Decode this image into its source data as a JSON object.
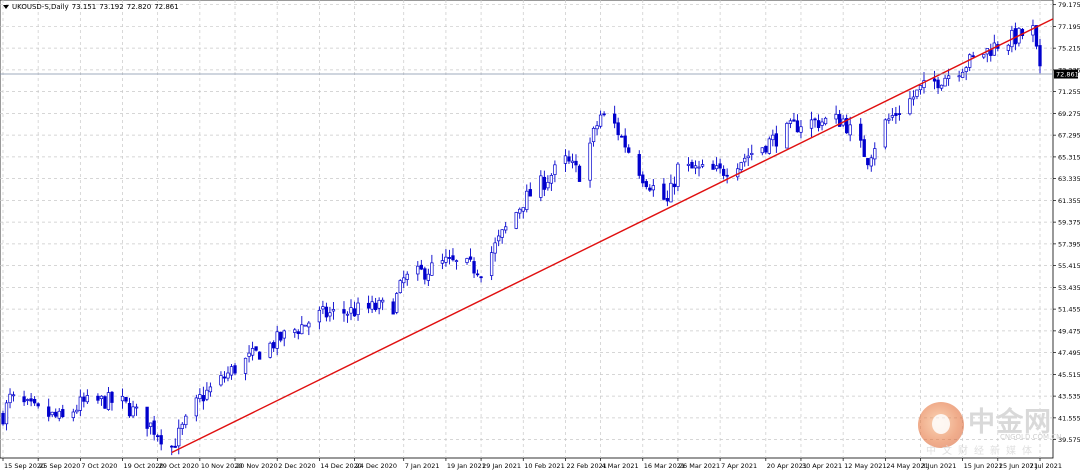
{
  "header": {
    "symbol_timeframe": "UKOUSD-S,Daily",
    "open": "73.151",
    "high": "73.192",
    "low": "72.820",
    "close": "72.861"
  },
  "watermark": {
    "title": "中金网",
    "subtitle": "中文财经新媒体",
    "url": "CNGOLD.COM.CN"
  },
  "colors": {
    "background": "#ffffff",
    "grid": "#c8c8c8",
    "candle": "#0000cc",
    "trendline": "#e01010",
    "price_line": "#7f8fa8",
    "price_tag_bg": "#000000"
  },
  "chart_data": {
    "type": "candlestick",
    "title": "",
    "xlabel": "",
    "ylabel": "",
    "ylim": [
      37.9,
      79.6
    ],
    "grid": true,
    "current_price": "72.861",
    "y_ticks": [
      "79.175",
      "77.195",
      "75.215",
      "73.235",
      "71.255",
      "69.275",
      "67.295",
      "65.315",
      "63.335",
      "61.355",
      "59.375",
      "57.395",
      "55.415",
      "53.435",
      "51.455",
      "49.475",
      "47.495",
      "45.515",
      "43.535",
      "41.555",
      "39.575"
    ],
    "x_ticks": [
      "15 Sep 2020",
      "25 Sep 2020",
      "7 Oct 2020",
      "19 Oct 2020",
      "29 Oct 2020",
      "10 Nov 2020",
      "20 Nov 2020",
      "2 Dec 2020",
      "14 Dec 2020",
      "24 Dec 2020",
      "7 Jan 2021",
      "19 Jan 2021",
      "29 Jan 2021",
      "10 Feb 2021",
      "22 Feb 2021",
      "4 Mar 2021",
      "16 Mar 2021",
      "26 Mar 2021",
      "7 Apr 2021",
      "20 Apr 2021",
      "30 Apr 2021",
      "12 May 2021",
      "24 May 2021",
      "3 Jun 2021",
      "15 Jun 2021",
      "25 Jun 2021",
      "7 Jul 2021"
    ],
    "close_series": [
      {
        "date": "15 Sep 2020",
        "close": 41.8
      },
      {
        "date": "17 Sep 2020",
        "close": 43.3
      },
      {
        "date": "25 Sep 2020",
        "close": 42.1
      },
      {
        "date": "2 Oct 2020",
        "close": 41.4
      },
      {
        "date": "7 Oct 2020",
        "close": 42.8
      },
      {
        "date": "14 Oct 2020",
        "close": 43.1
      },
      {
        "date": "19 Oct 2020",
        "close": 42.9
      },
      {
        "date": "26 Oct 2020",
        "close": 41.2
      },
      {
        "date": "2 Nov 2020",
        "close": 38.9
      },
      {
        "date": "10 Nov 2020",
        "close": 43.3
      },
      {
        "date": "20 Nov 2020",
        "close": 46.1
      },
      {
        "date": "2 Dec 2020",
        "close": 48.6
      },
      {
        "date": "14 Dec 2020",
        "close": 50.9
      },
      {
        "date": "24 Dec 2020",
        "close": 51.3
      },
      {
        "date": "4 Jan 2021",
        "close": 51.8
      },
      {
        "date": "7 Jan 2021",
        "close": 54.1
      },
      {
        "date": "19 Jan 2021",
        "close": 55.7
      },
      {
        "date": "29 Jan 2021",
        "close": 55.1
      },
      {
        "date": "10 Feb 2021",
        "close": 61.3
      },
      {
        "date": "22 Feb 2021",
        "close": 64.9
      },
      {
        "date": "26 Feb 2021",
        "close": 63.8
      },
      {
        "date": "4 Mar 2021",
        "close": 69.1
      },
      {
        "date": "8 Mar 2021",
        "close": 68.2
      },
      {
        "date": "16 Mar 2021",
        "close": 63.6
      },
      {
        "date": "23 Mar 2021",
        "close": 61.1
      },
      {
        "date": "26 Mar 2021",
        "close": 64.3
      },
      {
        "date": "7 Apr 2021",
        "close": 63.9
      },
      {
        "date": "20 Apr 2021",
        "close": 66.5
      },
      {
        "date": "30 Apr 2021",
        "close": 68.4
      },
      {
        "date": "12 May 2021",
        "close": 68.7
      },
      {
        "date": "19 May 2021",
        "close": 65.2
      },
      {
        "date": "24 May 2021",
        "close": 68.4
      },
      {
        "date": "3 Jun 2021",
        "close": 71.4
      },
      {
        "date": "15 Jun 2021",
        "close": 73.6
      },
      {
        "date": "25 Jun 2021",
        "close": 75.6
      },
      {
        "date": "5 Jul 2021",
        "close": 76.8
      },
      {
        "date": "7 Jul 2021",
        "close": 72.861
      }
    ],
    "trendline": {
      "start": {
        "date": "2 Nov 2020",
        "value": 38.4
      },
      "end": {
        "date": "7 Jul 2021",
        "value": 77.3
      }
    }
  }
}
